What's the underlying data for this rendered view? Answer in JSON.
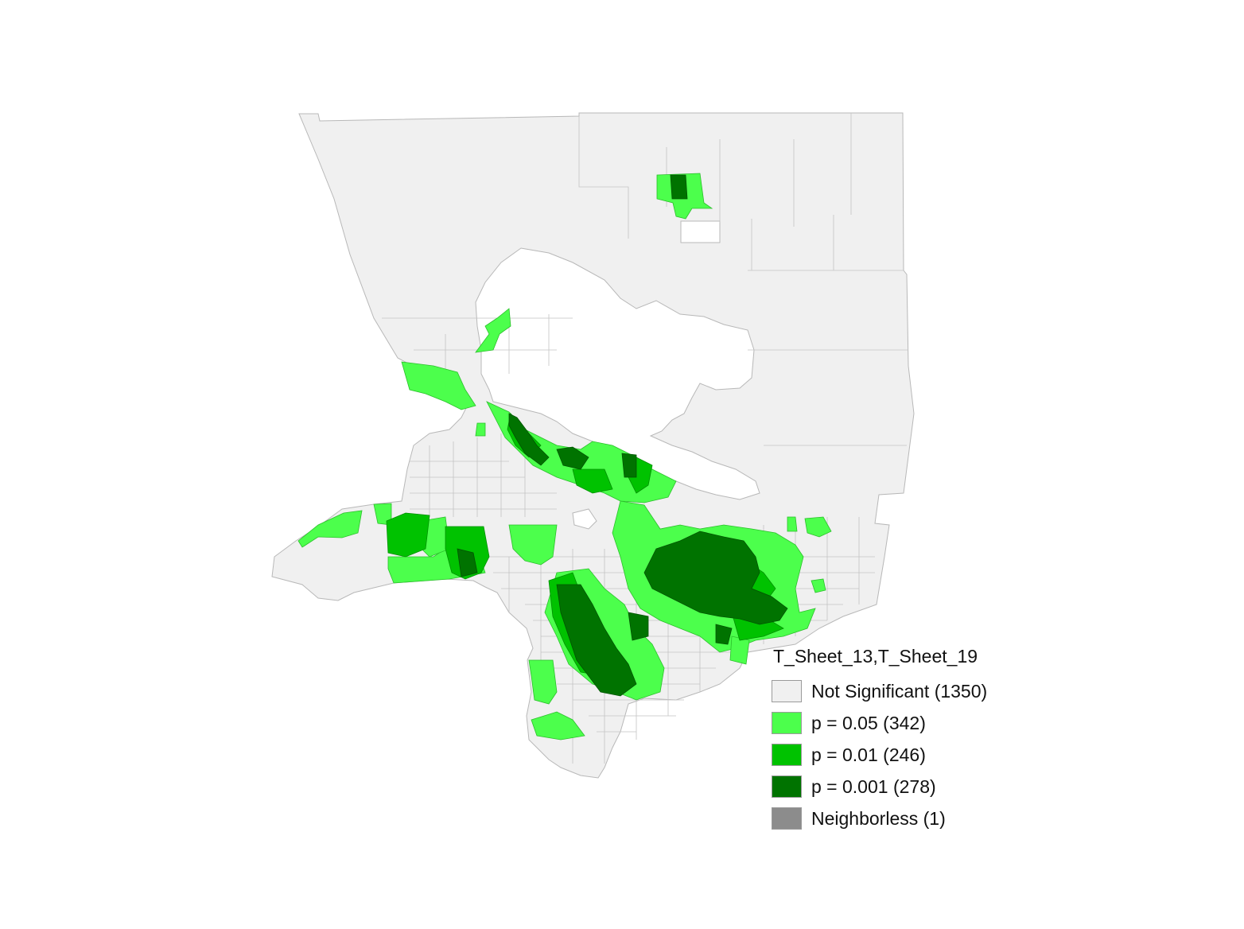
{
  "colors": {
    "not_significant": "#f0f0f0",
    "p_05": "#4cff4c",
    "p_01": "#00c200",
    "p_001": "#007300",
    "neighborless": "#8c8c8c",
    "boundary": "#b8b8b8"
  },
  "legend": {
    "title": "T_Sheet_13,T_Sheet_19",
    "items": [
      {
        "label": "Not Significant (1350)",
        "color_key": "not_significant",
        "count": 1350
      },
      {
        "label": "p = 0.05 (342)",
        "color_key": "p_05",
        "count": 342
      },
      {
        "label": "p = 0.01 (246)",
        "color_key": "p_01",
        "count": 246
      },
      {
        "label": "p = 0.001 (278)",
        "color_key": "p_001",
        "count": 278
      },
      {
        "label": "Neighborless (1)",
        "color_key": "neighborless",
        "count": 1
      }
    ]
  }
}
